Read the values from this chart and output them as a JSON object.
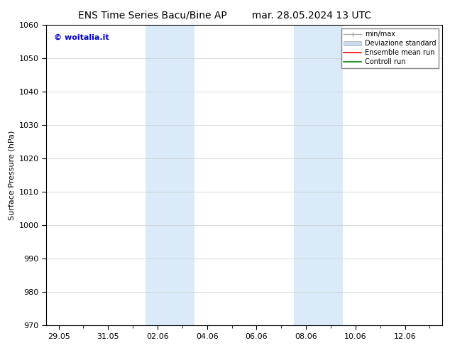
{
  "title_left": "ENS Time Series Bacu/Bine AP",
  "title_right": "mar. 28.05.2024 13 UTC",
  "ylabel": "Surface Pressure (hPa)",
  "ylim": [
    970,
    1060
  ],
  "yticks": [
    970,
    980,
    990,
    1000,
    1010,
    1020,
    1030,
    1040,
    1050,
    1060
  ],
  "xtick_labels": [
    "29.05",
    "31.05",
    "02.06",
    "04.06",
    "06.06",
    "08.06",
    "10.06",
    "12.06"
  ],
  "xtick_positions": [
    0,
    2,
    4,
    6,
    8,
    10,
    12,
    14
  ],
  "xlim": [
    -0.5,
    15.5
  ],
  "shaded_bands": [
    {
      "x_start": 3.5,
      "x_end": 5.5,
      "color": "#dbeaf8"
    },
    {
      "x_start": 9.5,
      "x_end": 11.5,
      "color": "#dbeaf8"
    }
  ],
  "legend_entries": [
    {
      "label": "min/max",
      "type": "minmax",
      "color": "#aaaaaa"
    },
    {
      "label": "Deviazione standard",
      "type": "patch",
      "color": "#c8dcef",
      "edgecolor": "#aaaaaa"
    },
    {
      "label": "Ensemble mean run",
      "type": "line",
      "color": "red"
    },
    {
      "label": "Controll run",
      "type": "line",
      "color": "green"
    }
  ],
  "watermark_text": "© woitalia.it",
  "watermark_color": "#0000cc",
  "watermark_fontsize": 8,
  "background_color": "#ffffff",
  "grid_color": "#cccccc",
  "title_fontsize": 10,
  "axis_label_fontsize": 8,
  "tick_fontsize": 8,
  "legend_fontsize": 7
}
